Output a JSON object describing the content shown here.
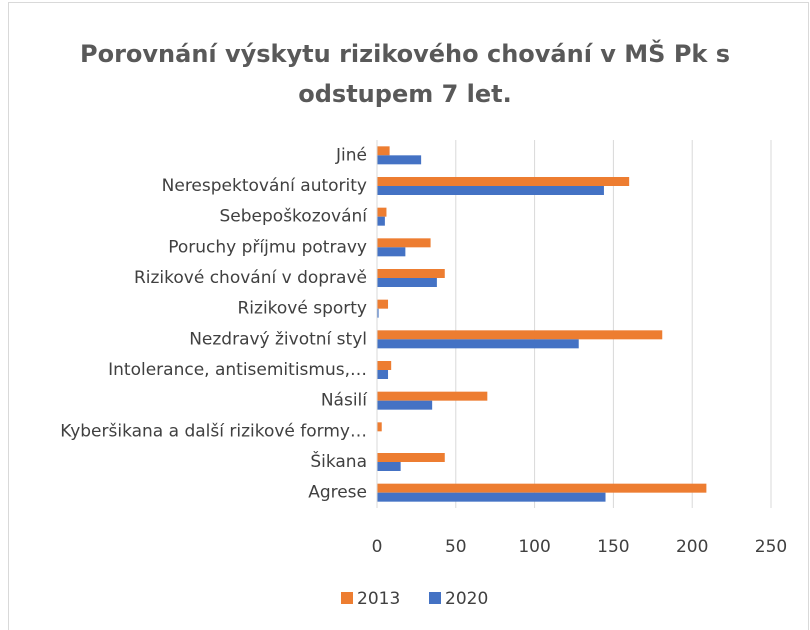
{
  "chart_data": {
    "type": "bar",
    "orientation": "horizontal",
    "title": "Porovnání výskytu rizikového chování v MŠ Pk s odstupem 7 let.",
    "categories": [
      "Jiné",
      "Nerespektování autority",
      "Sebepoškozování",
      "Poruchy příjmu potravy",
      "Rizikové chování v dopravě",
      "Rizikové sporty",
      "Nezdravý životní styl",
      "Intolerance, antisemitismus,…",
      "Násilí",
      "Kyberšikana a další rizikové formy…",
      "Šikana",
      "Agrese"
    ],
    "series": [
      {
        "name": "2013",
        "color": "#ed7d31",
        "values": [
          8,
          160,
          6,
          34,
          43,
          7,
          181,
          9,
          70,
          3,
          43,
          209
        ]
      },
      {
        "name": "2020",
        "color": "#4472c4",
        "values": [
          28,
          144,
          5,
          18,
          38,
          1,
          128,
          7,
          35,
          0,
          15,
          145
        ]
      }
    ],
    "xlim": [
      0,
      250
    ],
    "xticks": [
      0,
      50,
      100,
      150,
      200,
      250
    ],
    "grid": true,
    "legend": "bottom"
  }
}
